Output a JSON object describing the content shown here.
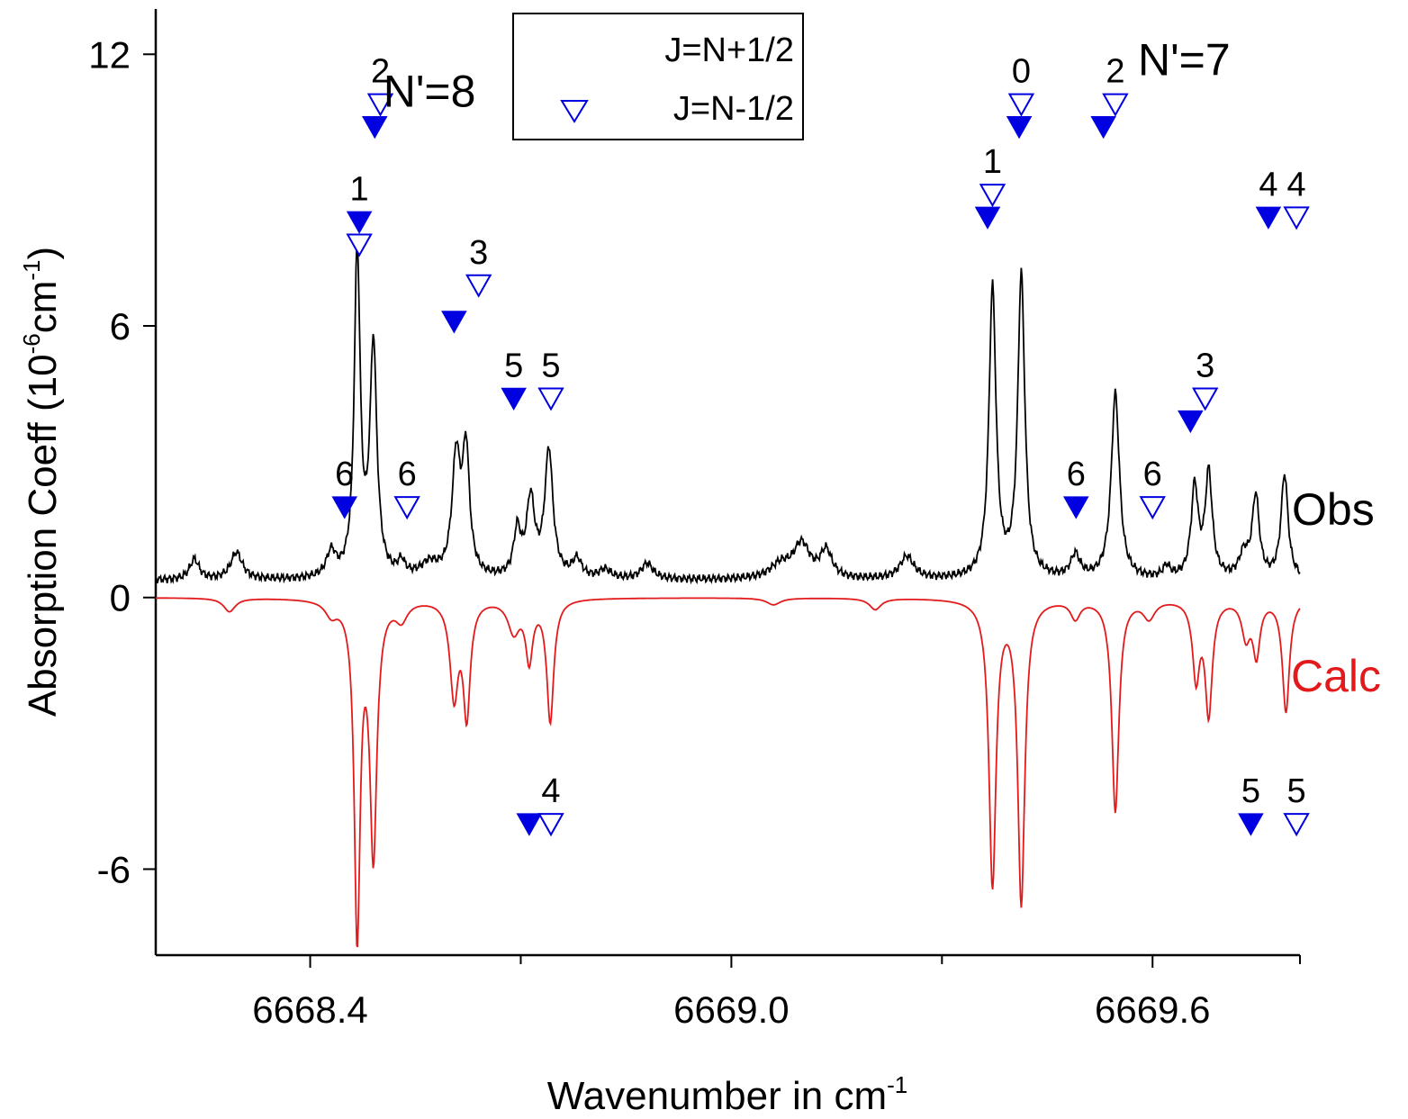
{
  "chart_data": {
    "type": "line",
    "xlabel": "Wavenumber in cm",
    "xlabel_sup": "-1",
    "ylabel_pre": "Absorption Coeff (10",
    "ylabel_sup1": "-6",
    "ylabel_mid": "cm",
    "ylabel_sup2": "-1",
    "ylabel_post": ")",
    "xlim": [
      6668.18,
      6669.81
    ],
    "ylim": [
      -7.9,
      13.0
    ],
    "x_ticks": [
      6668.4,
      6669.0,
      6669.6
    ],
    "x_tick_labels": [
      "6668.4",
      "6669.0",
      "6669.6"
    ],
    "x_minor_ticks": [
      6668.7,
      6669.3
    ],
    "y_ticks": [
      -6,
      0,
      6,
      12
    ],
    "y_tick_labels": [
      "-6",
      "0",
      "6",
      "12"
    ],
    "legend": {
      "placement": "top-center",
      "entries": [
        {
          "label": "J=N+1/2",
          "marker": "filled-triangle-down"
        },
        {
          "label": "J=N-1/2",
          "marker": "open-triangle-down"
        }
      ]
    },
    "series": [
      {
        "name": "Obs",
        "color": "#000000",
        "sign": 1,
        "baseline": 0.38,
        "peaks": [
          [
            6668.235,
            0.45,
            0.008
          ],
          [
            6668.295,
            0.6,
            0.01
          ],
          [
            6668.43,
            0.55,
            0.008
          ],
          [
            6668.467,
            7.2,
            0.005
          ],
          [
            6668.49,
            5.1,
            0.006
          ],
          [
            6668.53,
            0.3,
            0.006
          ],
          [
            6668.57,
            0.3,
            0.015
          ],
          [
            6668.608,
            2.6,
            0.007
          ],
          [
            6668.622,
            2.7,
            0.006
          ],
          [
            6668.695,
            1.0,
            0.006
          ],
          [
            6668.714,
            1.7,
            0.007
          ],
          [
            6668.74,
            2.8,
            0.007
          ],
          [
            6668.78,
            0.4,
            0.008
          ],
          [
            6668.82,
            0.2,
            0.01
          ],
          [
            6668.88,
            0.35,
            0.01
          ],
          [
            6669.07,
            0.3,
            0.018
          ],
          [
            6669.1,
            0.75,
            0.014
          ],
          [
            6669.135,
            0.6,
            0.01
          ],
          [
            6669.25,
            0.5,
            0.012
          ],
          [
            6669.372,
            6.4,
            0.006
          ],
          [
            6669.413,
            6.7,
            0.006
          ],
          [
            6669.49,
            0.5,
            0.008
          ],
          [
            6669.547,
            4.1,
            0.007
          ],
          [
            6669.62,
            0.25,
            0.006
          ],
          [
            6669.66,
            2.0,
            0.006
          ],
          [
            6669.68,
            2.3,
            0.006
          ],
          [
            6669.73,
            0.5,
            0.008
          ],
          [
            6669.747,
            1.8,
            0.006
          ],
          [
            6669.788,
            2.3,
            0.006
          ]
        ],
        "text_label": "Obs"
      },
      {
        "name": "Calc",
        "color": "#e31a1c",
        "sign": -1,
        "baseline": 0.0,
        "peaks": [
          [
            6668.285,
            0.3,
            0.01
          ],
          [
            6668.43,
            0.3,
            0.01
          ],
          [
            6668.467,
            7.4,
            0.005
          ],
          [
            6668.49,
            5.6,
            0.006
          ],
          [
            6668.53,
            0.4,
            0.01
          ],
          [
            6668.605,
            2.1,
            0.007
          ],
          [
            6668.623,
            2.5,
            0.006
          ],
          [
            6668.69,
            0.7,
            0.01
          ],
          [
            6668.712,
            1.3,
            0.006
          ],
          [
            6668.742,
            2.7,
            0.006
          ],
          [
            6669.06,
            0.15,
            0.012
          ],
          [
            6669.205,
            0.25,
            0.01
          ],
          [
            6669.372,
            6.3,
            0.006
          ],
          [
            6669.413,
            6.7,
            0.006
          ],
          [
            6669.49,
            0.4,
            0.008
          ],
          [
            6669.547,
            4.7,
            0.006
          ],
          [
            6669.595,
            0.4,
            0.01
          ],
          [
            6669.662,
            1.7,
            0.006
          ],
          [
            6669.68,
            2.5,
            0.006
          ],
          [
            6669.733,
            0.8,
            0.007
          ],
          [
            6669.748,
            1.2,
            0.006
          ],
          [
            6669.79,
            2.5,
            0.006
          ]
        ],
        "text_label": "Calc"
      }
    ],
    "markers": [
      {
        "x": 6668.449,
        "y": 2.0,
        "fill": "filled",
        "label": "6"
      },
      {
        "x": 6668.538,
        "y": 2.0,
        "fill": "open",
        "label": "6"
      },
      {
        "x": 6668.47,
        "y": 8.3,
        "fill": "filled",
        "label": "1"
      },
      {
        "x": 6668.47,
        "y": 7.8,
        "fill": "open",
        "label": ""
      },
      {
        "x": 6668.492,
        "y": 10.4,
        "fill": "filled",
        "label": ""
      },
      {
        "x": 6668.5,
        "y": 10.9,
        "fill": "open",
        "label": "2"
      },
      {
        "x": 6668.605,
        "y": 6.1,
        "fill": "filled",
        "label": ""
      },
      {
        "x": 6668.64,
        "y": 6.9,
        "fill": "open",
        "label": "3"
      },
      {
        "x": 6668.69,
        "y": 4.4,
        "fill": "filled",
        "label": "5"
      },
      {
        "x": 6668.743,
        "y": 4.4,
        "fill": "open",
        "label": "5"
      },
      {
        "x": 6668.712,
        "y": -5.0,
        "fill": "filled",
        "label": ""
      },
      {
        "x": 6668.743,
        "y": -5.0,
        "fill": "open",
        "label": "4"
      },
      {
        "x": 6669.365,
        "y": 8.4,
        "fill": "filled",
        "label": ""
      },
      {
        "x": 6669.372,
        "y": 8.9,
        "fill": "open",
        "label": "1"
      },
      {
        "x": 6669.41,
        "y": 10.4,
        "fill": "filled",
        "label": ""
      },
      {
        "x": 6669.413,
        "y": 10.9,
        "fill": "open",
        "label": "0"
      },
      {
        "x": 6669.53,
        "y": 10.4,
        "fill": "filled",
        "label": ""
      },
      {
        "x": 6669.547,
        "y": 10.9,
        "fill": "open",
        "label": "2"
      },
      {
        "x": 6669.491,
        "y": 2.0,
        "fill": "filled",
        "label": "6"
      },
      {
        "x": 6669.6,
        "y": 2.0,
        "fill": "open",
        "label": "6"
      },
      {
        "x": 6669.654,
        "y": 3.9,
        "fill": "filled",
        "label": ""
      },
      {
        "x": 6669.675,
        "y": 4.4,
        "fill": "open",
        "label": "3"
      },
      {
        "x": 6669.765,
        "y": 8.4,
        "fill": "filled",
        "label": "4"
      },
      {
        "x": 6669.805,
        "y": 8.4,
        "fill": "open",
        "label": "4"
      },
      {
        "x": 6669.74,
        "y": -5.0,
        "fill": "filled",
        "label": "5"
      },
      {
        "x": 6669.805,
        "y": -5.0,
        "fill": "open",
        "label": "5"
      }
    ],
    "annotations": [
      {
        "text": "N'=8",
        "x": 6668.57,
        "y": 11.2
      },
      {
        "text": "N'=7",
        "x": 6669.645,
        "y": 11.9
      }
    ]
  }
}
